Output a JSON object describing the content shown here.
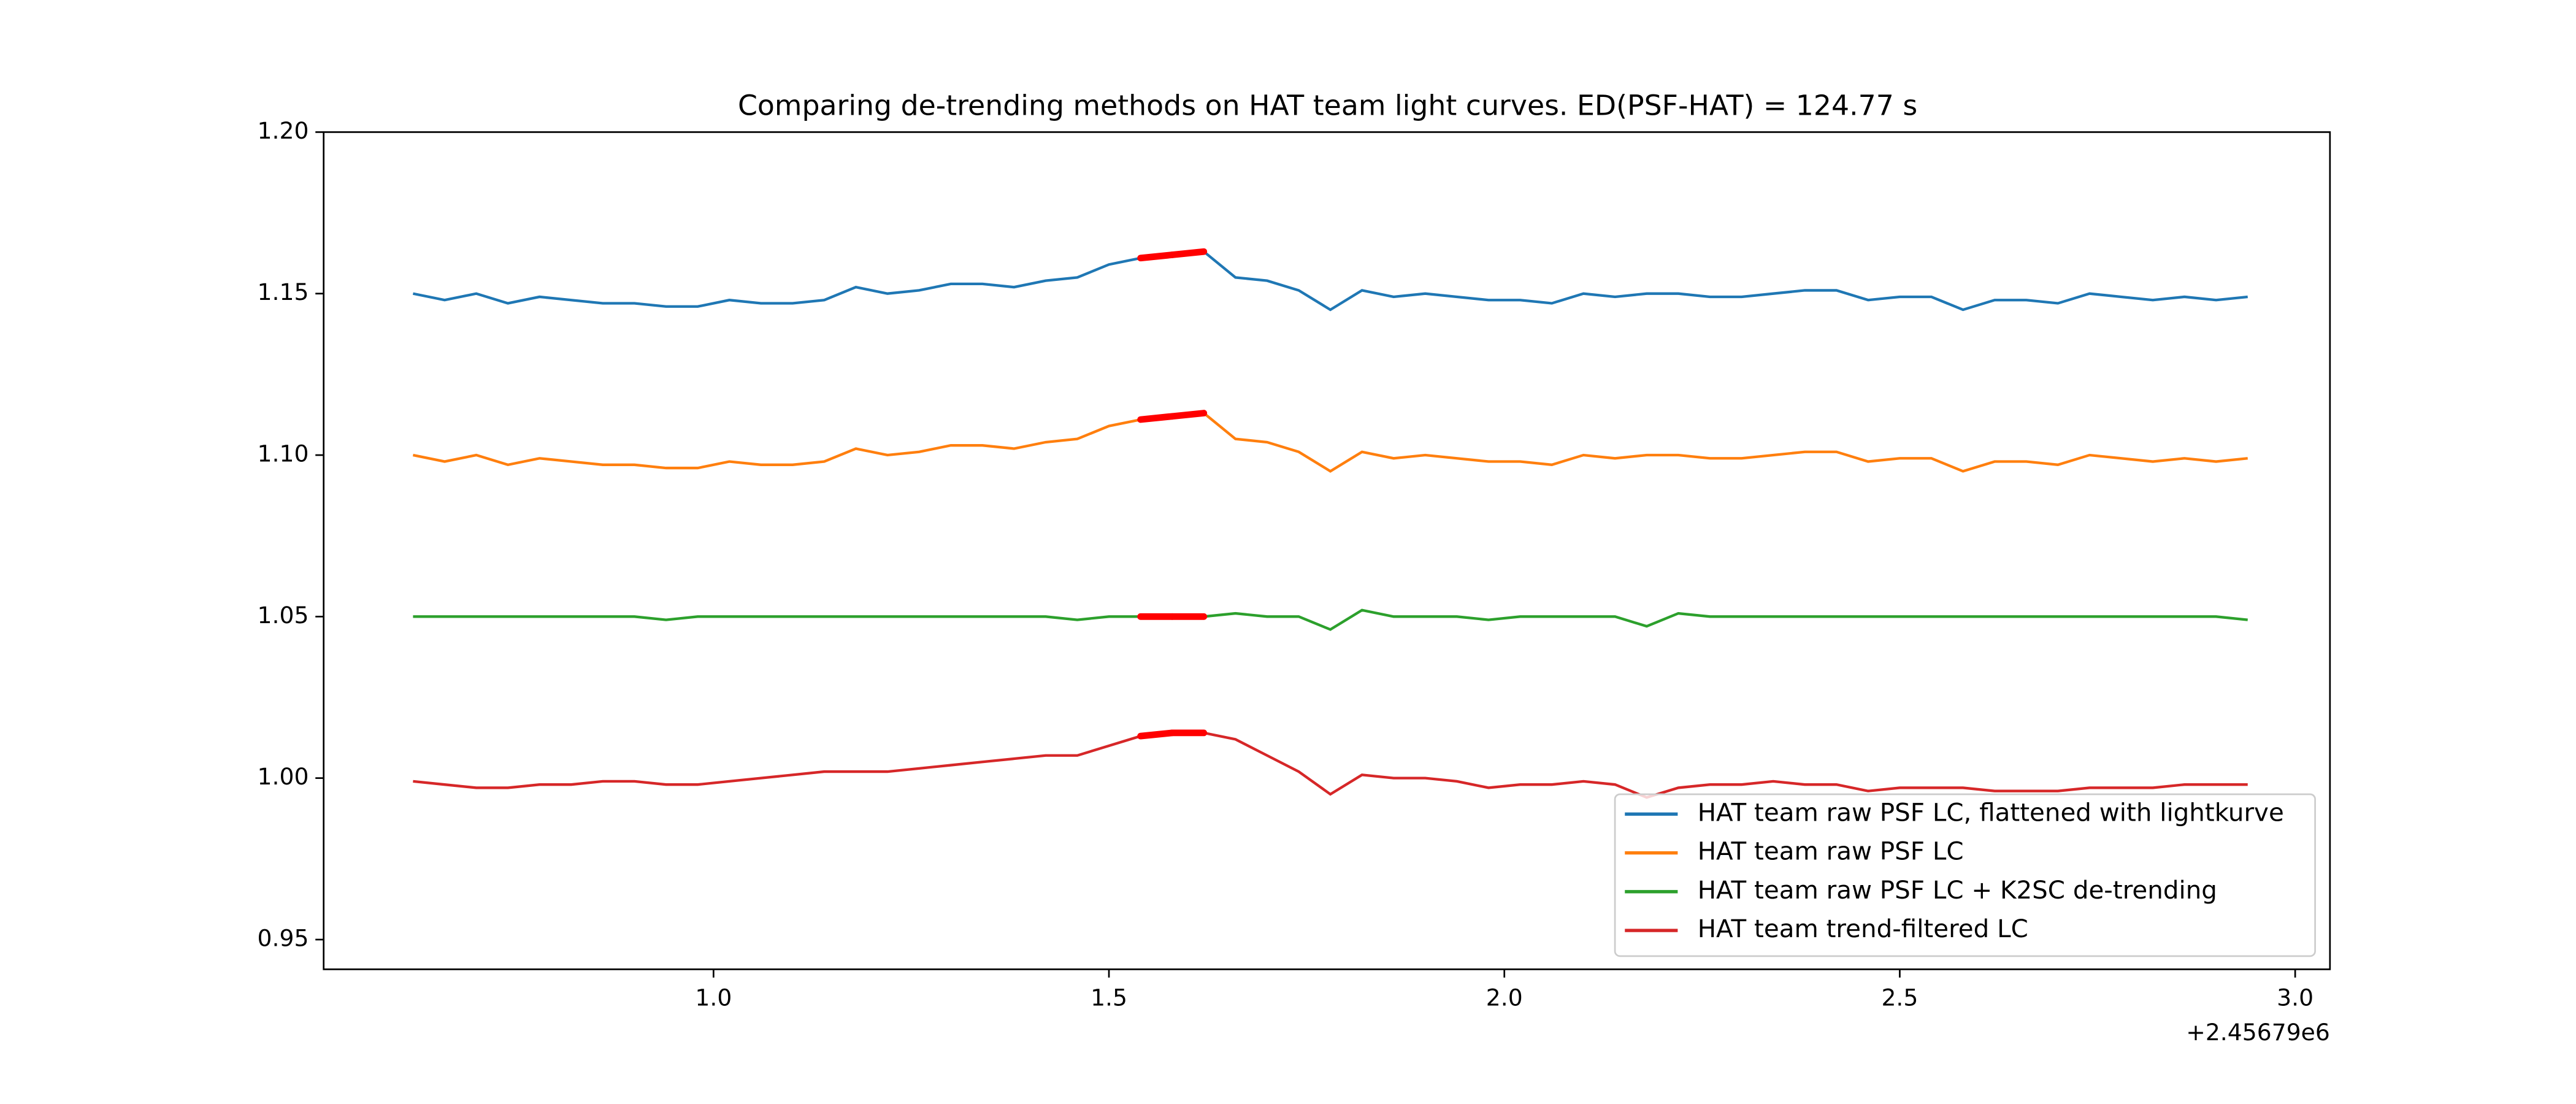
{
  "chart_data": {
    "type": "line",
    "title": "Comparing de-trending methods on HAT team light curves. ED(PSF-HAT) = 124.77 s",
    "x_offset_label": "+2.45679e6",
    "x": [
      0.62,
      0.66,
      0.7,
      0.74,
      0.78,
      0.82,
      0.86,
      0.9,
      0.94,
      0.98,
      1.02,
      1.06,
      1.1,
      1.14,
      1.18,
      1.22,
      1.26,
      1.3,
      1.34,
      1.38,
      1.42,
      1.46,
      1.5,
      1.54,
      1.58,
      1.62,
      1.66,
      1.7,
      1.74,
      1.78,
      1.82,
      1.86,
      1.9,
      1.94,
      1.98,
      2.02,
      2.06,
      2.1,
      2.14,
      2.18,
      2.22,
      2.26,
      2.3,
      2.34,
      2.38,
      2.42,
      2.46,
      2.5,
      2.54,
      2.58,
      2.62,
      2.66,
      2.7,
      2.74,
      2.78,
      2.82,
      2.86,
      2.9,
      2.94
    ],
    "series": [
      {
        "name": "HAT team raw PSF LC, flattened with lightkurve",
        "color": "#1f77b4",
        "values": [
          1.15,
          1.148,
          1.15,
          1.147,
          1.149,
          1.148,
          1.147,
          1.147,
          1.146,
          1.146,
          1.148,
          1.147,
          1.147,
          1.148,
          1.152,
          1.15,
          1.151,
          1.153,
          1.153,
          1.152,
          1.154,
          1.155,
          1.159,
          1.161,
          1.162,
          1.163,
          1.155,
          1.154,
          1.151,
          1.145,
          1.151,
          1.149,
          1.15,
          1.149,
          1.148,
          1.148,
          1.147,
          1.15,
          1.149,
          1.15,
          1.15,
          1.149,
          1.149,
          1.15,
          1.151,
          1.151,
          1.148,
          1.149,
          1.149,
          1.145,
          1.148,
          1.148,
          1.147,
          1.15,
          1.149,
          1.148,
          1.149,
          1.148,
          1.149
        ]
      },
      {
        "name": "HAT team raw PSF LC",
        "color": "#ff7f0e",
        "values": [
          1.1,
          1.098,
          1.1,
          1.097,
          1.099,
          1.098,
          1.097,
          1.097,
          1.096,
          1.096,
          1.098,
          1.097,
          1.097,
          1.098,
          1.102,
          1.1,
          1.101,
          1.103,
          1.103,
          1.102,
          1.104,
          1.105,
          1.109,
          1.111,
          1.112,
          1.113,
          1.105,
          1.104,
          1.101,
          1.095,
          1.101,
          1.099,
          1.1,
          1.099,
          1.098,
          1.098,
          1.097,
          1.1,
          1.099,
          1.1,
          1.1,
          1.099,
          1.099,
          1.1,
          1.101,
          1.101,
          1.098,
          1.099,
          1.099,
          1.095,
          1.098,
          1.098,
          1.097,
          1.1,
          1.099,
          1.098,
          1.099,
          1.098,
          1.099
        ]
      },
      {
        "name": "HAT team raw PSF LC + K2SC de-trending",
        "color": "#2ca02c",
        "values": [
          1.05,
          1.05,
          1.05,
          1.05,
          1.05,
          1.05,
          1.05,
          1.05,
          1.049,
          1.05,
          1.05,
          1.05,
          1.05,
          1.05,
          1.05,
          1.05,
          1.05,
          1.05,
          1.05,
          1.05,
          1.05,
          1.049,
          1.05,
          1.05,
          1.05,
          1.05,
          1.051,
          1.05,
          1.05,
          1.046,
          1.052,
          1.05,
          1.05,
          1.05,
          1.049,
          1.05,
          1.05,
          1.05,
          1.05,
          1.047,
          1.051,
          1.05,
          1.05,
          1.05,
          1.05,
          1.05,
          1.05,
          1.05,
          1.05,
          1.05,
          1.05,
          1.05,
          1.05,
          1.05,
          1.05,
          1.05,
          1.05,
          1.05,
          1.049
        ]
      },
      {
        "name": "HAT team trend-filtered LC",
        "color": "#d62728",
        "values": [
          0.999,
          0.998,
          0.997,
          0.997,
          0.998,
          0.998,
          0.999,
          0.999,
          0.998,
          0.998,
          0.999,
          1.0,
          1.001,
          1.002,
          1.002,
          1.002,
          1.003,
          1.004,
          1.005,
          1.006,
          1.007,
          1.007,
          1.01,
          1.013,
          1.014,
          1.014,
          1.012,
          1.007,
          1.002,
          0.995,
          1.001,
          1.0,
          1.0,
          0.999,
          0.997,
          0.998,
          0.998,
          0.999,
          0.998,
          0.994,
          0.997,
          0.998,
          0.998,
          0.999,
          0.998,
          0.998,
          0.996,
          0.997,
          0.997,
          0.997,
          0.996,
          0.996,
          0.996,
          0.997,
          0.997,
          0.997,
          0.998,
          0.998,
          0.998
        ]
      }
    ],
    "highlight": {
      "xlim": [
        1.54,
        1.62
      ],
      "color": "#ff0000"
    },
    "xlim": [
      0.507,
      3.044
    ],
    "ylim": [
      0.9408,
      1.2
    ],
    "xticks": [
      {
        "value": 1,
        "label": "1.0"
      },
      1.5,
      {
        "value": 2,
        "label": "2.0"
      },
      2.5,
      {
        "value": 3,
        "label": "3.0"
      }
    ],
    "yticks": [
      0.95,
      {
        "value": 1,
        "label": "1.00"
      },
      1.05,
      {
        "value": 1.1,
        "label": "1.10"
      },
      1.15,
      {
        "value": 1.2,
        "label": "1.20"
      }
    ],
    "legend": "lower right"
  }
}
